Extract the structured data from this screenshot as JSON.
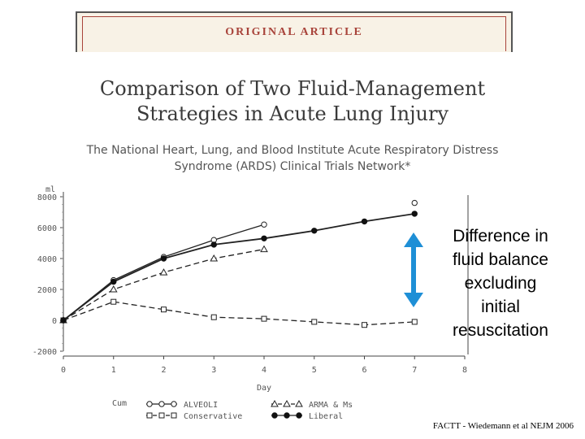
{
  "header": {
    "label": "ORIGINAL ARTICLE"
  },
  "article": {
    "title_line1": "Comparison of Two Fluid-Management",
    "title_line2": "Strategies in Acute Lung Injury",
    "subtitle_line1": "The National Heart, Lung, and Blood Institute Acute Respiratory Distress",
    "subtitle_line2": "Syndrome (ARDS) Clinical Trials Network*"
  },
  "callout": {
    "line1": "Difference in",
    "line2": "fluid balance",
    "line3": "excluding",
    "line4": "initial",
    "line5": "resuscitation",
    "arrow_color": "#1e8fd6"
  },
  "citation": "FACTT - Wiedemann et al NEJM 2006",
  "chart_data": {
    "type": "line",
    "xlabel": "Day",
    "ylabel": "ml",
    "xlim": [
      0,
      8
    ],
    "ylim": [
      -2000,
      8000
    ],
    "xticks": [
      "0",
      "1",
      "2",
      "3",
      "4",
      "5",
      "6",
      "7",
      "8"
    ],
    "yticks": [
      "8000",
      "6000",
      "4000",
      "2000",
      "0",
      "-2000"
    ],
    "legend_placement": "bottom",
    "legend_prefix": "Cum",
    "series": [
      {
        "name": "ALVEOLI",
        "marker": "open-circle",
        "dash": "solid",
        "x": [
          0,
          1,
          2,
          3,
          4,
          7
        ],
        "y": [
          0,
          2600,
          4100,
          5200,
          6200,
          7600
        ]
      },
      {
        "name": "ARMA & Ms",
        "marker": "triangle",
        "dash": "dashed",
        "x": [
          0,
          1,
          2,
          3,
          4
        ],
        "y": [
          0,
          2000,
          3100,
          4000,
          4600
        ]
      },
      {
        "name": "Conservative",
        "marker": "open-square",
        "dash": "dashed",
        "x": [
          0,
          1,
          2,
          3,
          4,
          5,
          6,
          7
        ],
        "y": [
          0,
          1200,
          700,
          200,
          100,
          -100,
          -300,
          -100
        ]
      },
      {
        "name": "Liberal",
        "marker": "filled-circle",
        "dash": "solid",
        "x": [
          0,
          1,
          2,
          3,
          4,
          5,
          6,
          7
        ],
        "y": [
          0,
          2500,
          4000,
          4900,
          5300,
          5800,
          6400,
          6900
        ]
      }
    ]
  }
}
